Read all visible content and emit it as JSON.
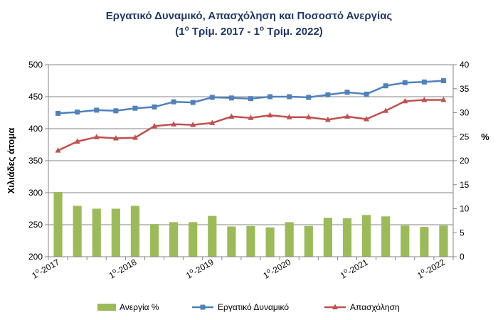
{
  "chart_data": {
    "type": "bar+line",
    "title": "Εργατικό Δυναμικό, Απασχόληση και Ποσοστό Ανεργίας",
    "subtitle_pre": "(1",
    "subtitle_sup1": "ο",
    "subtitle_mid": " Τρίμ. 2017 - 1",
    "subtitle_sup2": "ο",
    "subtitle_post": " Τρίμ. 2022)",
    "ylabel_left": "Χιλιάδες άτομα",
    "ylabel_right": "%",
    "ylim_left": [
      200,
      500
    ],
    "ylim_right": [
      0,
      40
    ],
    "yticks_left": [
      "200",
      "250",
      "300",
      "350",
      "400",
      "450",
      "500"
    ],
    "yticks_right": [
      "0",
      "5",
      "10",
      "15",
      "20",
      "25",
      "30",
      "35",
      "40"
    ],
    "x_tick_labels": [
      {
        "index": 0,
        "sup": "ο",
        "year": "2017"
      },
      {
        "index": 4,
        "sup": "ο",
        "year": "2018"
      },
      {
        "index": 8,
        "sup": "ο",
        "year": "2019"
      },
      {
        "index": 12,
        "sup": "ο",
        "year": "2020"
      },
      {
        "index": 16,
        "sup": "ο",
        "year": "2021"
      },
      {
        "index": 20,
        "sup": "ο",
        "year": "2022"
      }
    ],
    "x_tick_prefix": "1",
    "x_tick_sep": "-",
    "n_points": 21,
    "series": [
      {
        "name": "Ανεργία %",
        "kind": "bar",
        "axis": "right",
        "color": "#9bbb59",
        "values": [
          13.5,
          10.6,
          10.0,
          10.0,
          10.6,
          6.8,
          7.2,
          7.2,
          8.5,
          6.3,
          6.4,
          6.1,
          7.2,
          6.4,
          8.1,
          8.0,
          8.7,
          8.4,
          6.5,
          6.2,
          6.5
        ]
      },
      {
        "name": "Εργατικό Δυναμικό",
        "kind": "line",
        "axis": "left",
        "color": "#4f81bd",
        "values": [
          424,
          426,
          429,
          428,
          432,
          434,
          442,
          441,
          449,
          448,
          447,
          450,
          450,
          449,
          453,
          457,
          454,
          467,
          472,
          473,
          475
        ]
      },
      {
        "name": "Απασχόληση",
        "kind": "line",
        "axis": "left",
        "color": "#c0504d",
        "values": [
          366,
          380,
          387,
          385,
          386,
          404,
          407,
          406,
          409,
          419,
          417,
          421,
          418,
          418,
          414,
          419,
          415,
          428,
          443,
          445,
          445
        ]
      }
    ],
    "grid": true,
    "legend_position": "bottom"
  }
}
